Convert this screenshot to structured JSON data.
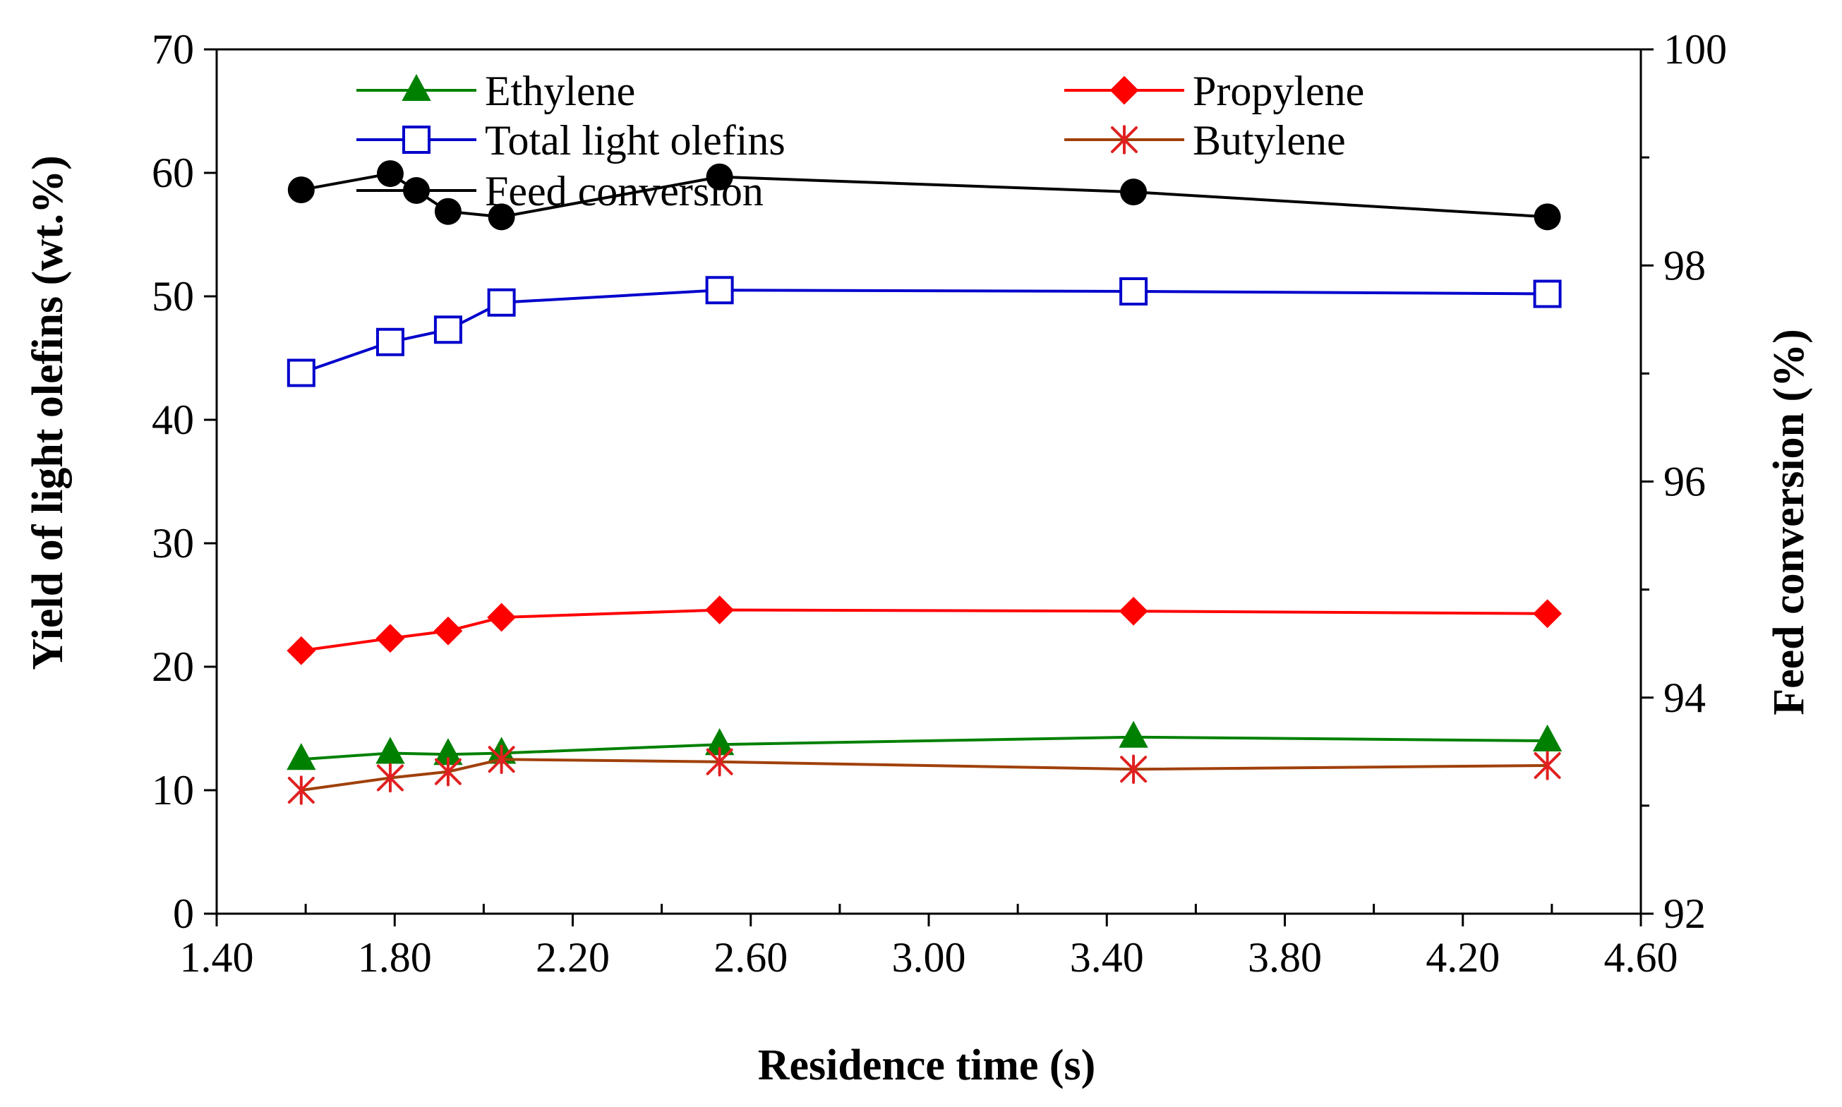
{
  "chart_data": {
    "type": "line",
    "title": "",
    "xlabel": "Residence time (s)",
    "ylabel": "Yield of light olefins (wt.%)",
    "y2label": "Feed conversion (%)",
    "xlim": [
      1.4,
      4.6
    ],
    "ylim": [
      0,
      70
    ],
    "y2lim": [
      92,
      100
    ],
    "xticks": [
      "1.40",
      "1.80",
      "2.20",
      "2.60",
      "3.00",
      "3.40",
      "3.80",
      "4.20",
      "4.60"
    ],
    "yticks": [
      "0",
      "10",
      "20",
      "30",
      "40",
      "50",
      "60",
      "70"
    ],
    "y2ticks": [
      "92",
      "94",
      "96",
      "98",
      "100"
    ],
    "x": [
      1.59,
      1.79,
      1.92,
      2.04,
      2.53,
      3.46,
      4.39
    ],
    "series": [
      {
        "name": "Ethylene",
        "axis": "left",
        "color": "#008000",
        "marker": "triangle",
        "values": [
          12.5,
          13.0,
          12.9,
          13.0,
          13.7,
          14.3,
          14.0
        ]
      },
      {
        "name": "Propylene",
        "axis": "left",
        "color": "#ff0000",
        "marker": "diamond",
        "values": [
          21.3,
          22.3,
          22.9,
          24.0,
          24.6,
          24.5,
          24.3
        ]
      },
      {
        "name": "Total light olefins",
        "axis": "left",
        "color": "#0000cc",
        "marker": "square-open",
        "values": [
          43.8,
          46.3,
          47.3,
          49.5,
          50.5,
          50.4,
          50.2
        ]
      },
      {
        "name": "Butylene",
        "axis": "left",
        "color": "#a0400a",
        "marker": "asterisk",
        "marker_color": "#e02020",
        "values": [
          10.0,
          11.0,
          11.5,
          12.5,
          12.3,
          11.7,
          12.0
        ]
      },
      {
        "name": "Feed conversion",
        "axis": "right",
        "color": "#000000",
        "marker": "circle",
        "values": [
          98.7,
          98.85,
          98.5,
          98.45,
          98.82,
          98.68,
          98.45
        ]
      }
    ],
    "legend_position": "top"
  }
}
